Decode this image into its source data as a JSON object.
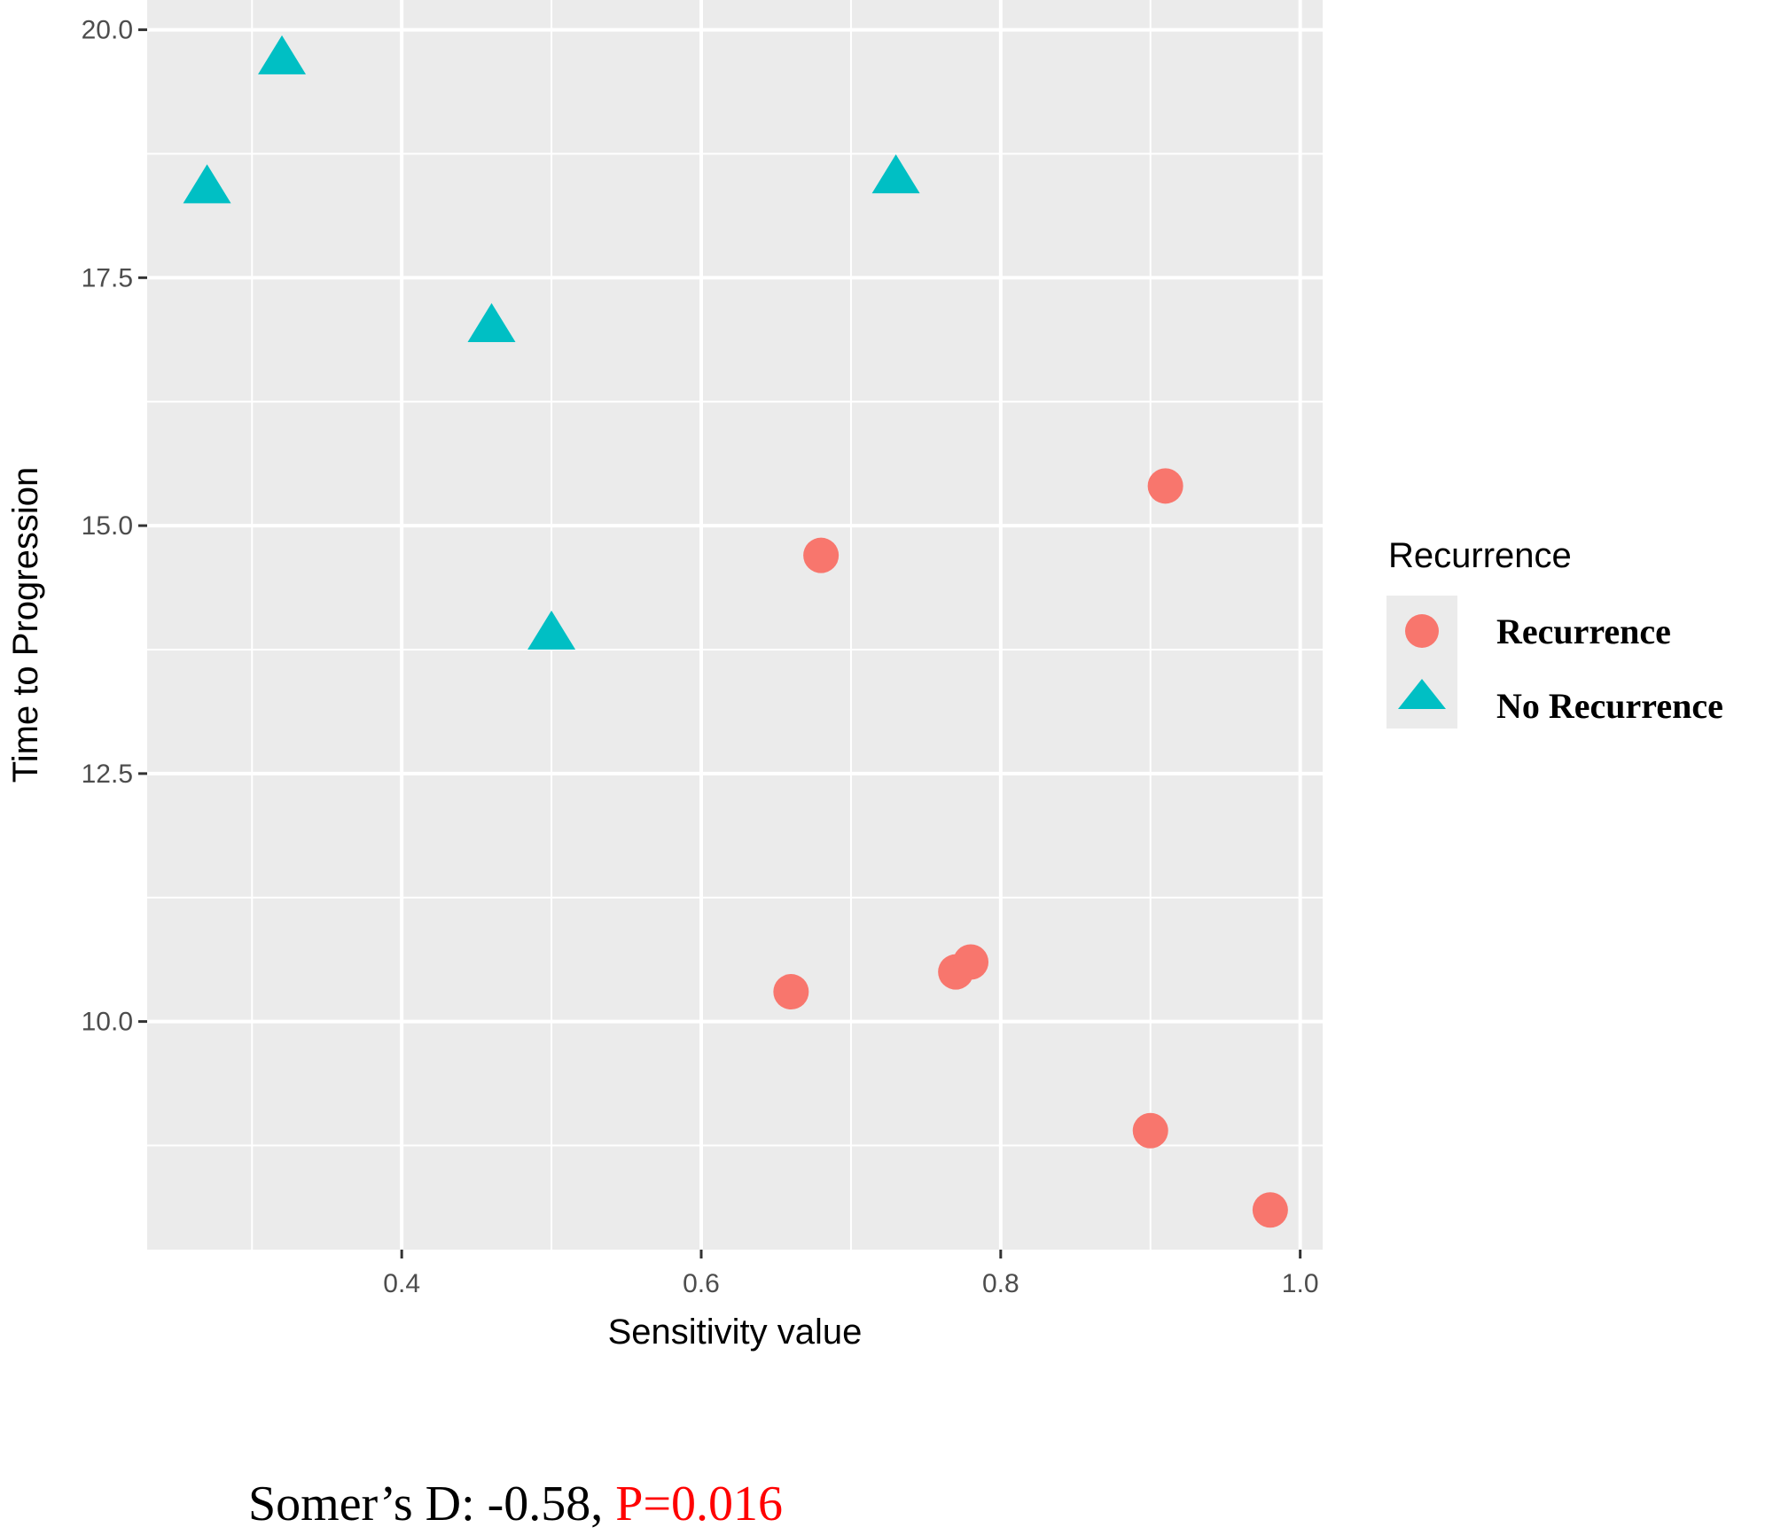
{
  "chart_data": {
    "type": "scatter",
    "xlabel": "Sensitivity value",
    "ylabel": "Time to Progression",
    "xlim": [
      0.23,
      1.015
    ],
    "ylim": [
      7.7,
      20.3
    ],
    "grid": true,
    "x_ticks": [
      0.4,
      0.6,
      0.8,
      1.0
    ],
    "x_tick_labels": [
      "0.4",
      "0.6",
      "0.8",
      "1.0"
    ],
    "y_ticks": [
      10.0,
      12.5,
      15.0,
      17.5,
      20.0
    ],
    "y_tick_labels": [
      "10.0",
      "12.5",
      "15.0",
      "17.5",
      "20.0"
    ],
    "legend": {
      "title": "Recurrence",
      "position": "right",
      "entries": [
        "Recurrence",
        "No Recurrence"
      ]
    },
    "series": [
      {
        "name": "Recurrence",
        "marker": "circle",
        "color": "#F8766D",
        "points": [
          {
            "x": 0.91,
            "y": 15.4
          },
          {
            "x": 0.68,
            "y": 14.7
          },
          {
            "x": 0.66,
            "y": 10.3
          },
          {
            "x": 0.77,
            "y": 10.5
          },
          {
            "x": 0.78,
            "y": 10.6
          },
          {
            "x": 0.9,
            "y": 8.9
          },
          {
            "x": 0.98,
            "y": 8.1
          }
        ]
      },
      {
        "name": "No Recurrence",
        "marker": "triangle",
        "color": "#00BFC4",
        "points": [
          {
            "x": 0.32,
            "y": 19.7
          },
          {
            "x": 0.27,
            "y": 18.4
          },
          {
            "x": 0.73,
            "y": 18.5
          },
          {
            "x": 0.46,
            "y": 17.0
          },
          {
            "x": 0.5,
            "y": 13.9
          }
        ]
      }
    ]
  },
  "annotation": {
    "prefix": "Somer’s D: -0.58, ",
    "pvalue": "P=0.016",
    "pvalue_color": "#ff0000"
  }
}
